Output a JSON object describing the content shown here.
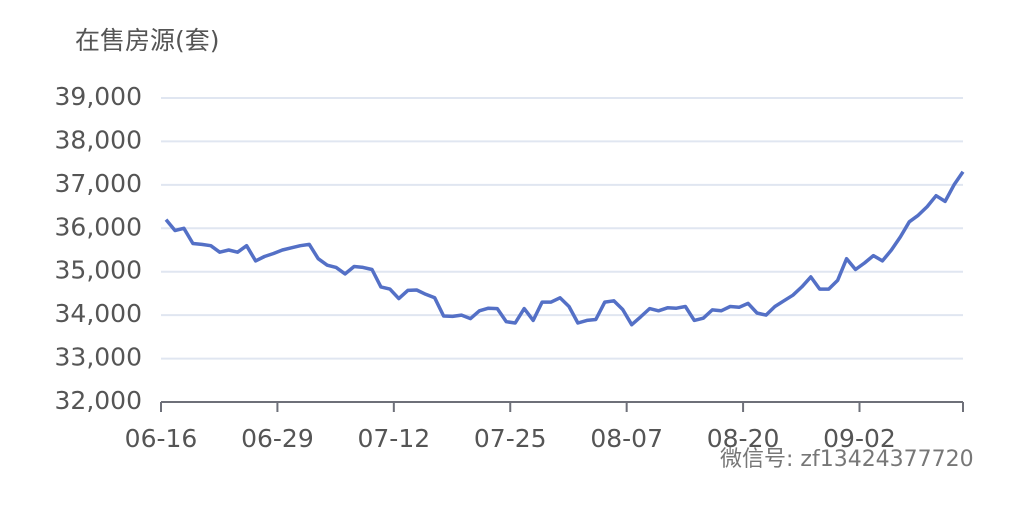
{
  "chart_data": {
    "type": "line",
    "y_axis_title": "在售房源(套)",
    "watermark": "微信号: zf13424377720",
    "categories": [
      "06-16",
      null,
      null,
      null,
      null,
      null,
      null,
      null,
      null,
      null,
      null,
      null,
      null,
      "06-29",
      null,
      null,
      null,
      null,
      null,
      null,
      null,
      null,
      null,
      null,
      null,
      null,
      "07-12",
      null,
      null,
      null,
      null,
      null,
      null,
      null,
      null,
      null,
      null,
      null,
      null,
      "07-25",
      null,
      null,
      null,
      null,
      null,
      null,
      null,
      null,
      null,
      null,
      null,
      null,
      "08-07",
      null,
      null,
      null,
      null,
      null,
      null,
      null,
      null,
      null,
      null,
      null,
      null,
      "08-20",
      null,
      null,
      null,
      null,
      null,
      null,
      null,
      null,
      null,
      null,
      null,
      null,
      "09-02",
      null,
      null,
      null,
      null,
      null,
      null,
      null,
      null,
      null,
      null,
      null
    ],
    "series": [
      {
        "name": "在售房源",
        "color": "#5470c6",
        "values": [
          36200,
          35950,
          36000,
          35650,
          35630,
          35600,
          35450,
          35500,
          35450,
          35600,
          35250,
          35350,
          35420,
          35500,
          35550,
          35600,
          35630,
          35300,
          35150,
          35100,
          34950,
          35120,
          35100,
          35050,
          34650,
          34600,
          34380,
          34570,
          34580,
          34480,
          34400,
          33980,
          33970,
          34000,
          33920,
          34100,
          34160,
          34150,
          33850,
          33820,
          34150,
          33880,
          34300,
          34300,
          34400,
          34200,
          33820,
          33880,
          33900,
          34300,
          34330,
          34130,
          33780,
          33960,
          34150,
          34100,
          34170,
          34160,
          34200,
          33880,
          33930,
          34120,
          34100,
          34200,
          34180,
          34270,
          34050,
          34000,
          34200,
          34330,
          34460,
          34650,
          34880,
          34600,
          34600,
          34800,
          35300,
          35050,
          35200,
          35370,
          35250,
          35500,
          35800,
          36150,
          36300,
          36500,
          36750,
          36620,
          37000,
          37300
        ]
      }
    ],
    "ylim": [
      32000,
      39000
    ],
    "yticks": [
      {
        "value": 32000,
        "label": "32,000"
      },
      {
        "value": 33000,
        "label": "33,000"
      },
      {
        "value": 34000,
        "label": "34,000"
      },
      {
        "value": 35000,
        "label": "35,000"
      },
      {
        "value": 36000,
        "label": "36,000"
      },
      {
        "value": 37000,
        "label": "37,000"
      },
      {
        "value": 38000,
        "label": "38,000"
      },
      {
        "value": 39000,
        "label": "39,000"
      }
    ],
    "grid": true
  }
}
